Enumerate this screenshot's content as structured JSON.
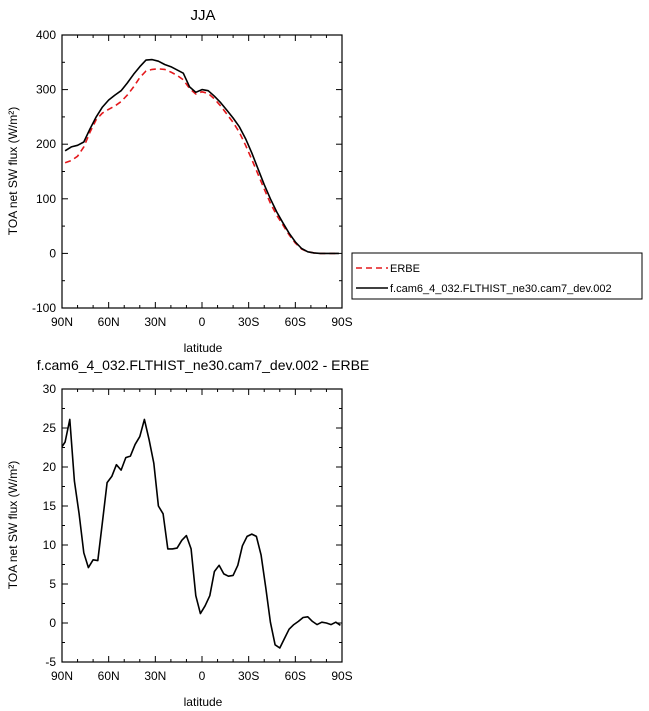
{
  "chart_data": [
    {
      "type": "line",
      "title": "JJA",
      "xlabel": "latitude",
      "ylabel": "TOA net SW flux (W/m²)",
      "xlim": [
        90,
        -90
      ],
      "ylim": [
        -100,
        400
      ],
      "xticks": [
        90,
        60,
        30,
        0,
        -30,
        -60,
        -90
      ],
      "xtick_labels": [
        "90N",
        "60N",
        "30N",
        "0",
        "30S",
        "60S",
        "90S"
      ],
      "yticks": [
        -100,
        0,
        100,
        200,
        300,
        400
      ],
      "ytick_labels": [
        "-100",
        "0",
        "100",
        "200",
        "300",
        "400"
      ],
      "legend": {
        "placement": "right-outside"
      },
      "series": [
        {
          "name": "ERBE",
          "color": "#e4181c",
          "dash": "dashed",
          "x": [
            88,
            84,
            80,
            76,
            72,
            68,
            64,
            60,
            56,
            52,
            48,
            44,
            40,
            36,
            32,
            28,
            24,
            20,
            16,
            12,
            8,
            4,
            0,
            -4,
            -8,
            -12,
            -16,
            -20,
            -24,
            -28,
            -32,
            -36,
            -40,
            -44,
            -48,
            -52,
            -56,
            -60,
            -64,
            -68,
            -72,
            -76,
            -80,
            -84,
            -88
          ],
          "values": [
            166,
            170,
            178,
            195,
            222,
            245,
            257,
            264,
            270,
            278,
            290,
            305,
            322,
            334,
            337,
            338,
            337,
            332,
            326,
            318,
            302,
            292,
            296,
            293,
            283,
            270,
            255,
            240,
            222,
            198,
            172,
            145,
            118,
            92,
            70,
            52,
            34,
            19,
            8,
            3,
            1,
            0,
            0,
            0,
            0
          ]
        },
        {
          "name": "f.cam6_4_032.FLTHIST_ne30.cam7_dev.002",
          "color": "#000000",
          "dash": "solid",
          "x": [
            88,
            84,
            80,
            76,
            72,
            68,
            64,
            60,
            56,
            52,
            48,
            44,
            40,
            36,
            32,
            28,
            24,
            20,
            16,
            12,
            8,
            4,
            0,
            -4,
            -8,
            -12,
            -16,
            -20,
            -24,
            -28,
            -32,
            -36,
            -40,
            -44,
            -48,
            -52,
            -56,
            -60,
            -64,
            -68,
            -72,
            -76,
            -80,
            -84,
            -88
          ],
          "values": [
            188,
            195,
            198,
            204,
            228,
            250,
            268,
            281,
            290,
            298,
            312,
            328,
            342,
            354,
            355,
            352,
            346,
            342,
            336,
            330,
            305,
            295,
            300,
            298,
            288,
            276,
            262,
            248,
            232,
            210,
            184,
            155,
            126,
            100,
            76,
            56,
            37,
            21,
            9,
            3,
            1,
            0,
            0,
            0,
            0
          ]
        }
      ]
    },
    {
      "type": "line",
      "title": "f.cam6_4_032.FLTHIST_ne30.cam7_dev.002 - ERBE",
      "xlabel": "latitude",
      "ylabel": "TOA net SW flux (W/m²)",
      "xlim": [
        90,
        -90
      ],
      "ylim": [
        -5,
        30
      ],
      "xticks": [
        90,
        60,
        30,
        0,
        -30,
        -60,
        -90
      ],
      "xtick_labels": [
        "90N",
        "60N",
        "30N",
        "0",
        "30S",
        "60S",
        "90S"
      ],
      "yticks": [
        -5,
        0,
        5,
        10,
        15,
        20,
        25,
        30
      ],
      "ytick_labels": [
        "-5",
        "0",
        "5",
        "10",
        "15",
        "20",
        "25",
        "30"
      ],
      "series": [
        {
          "color": "#000000",
          "dash": "solid",
          "x": [
            90,
            88,
            85,
            82,
            79,
            76,
            73,
            70,
            67,
            64,
            61,
            58,
            55,
            52,
            49,
            46,
            43,
            40,
            37,
            34,
            31,
            28,
            25,
            22,
            19,
            16,
            13,
            10,
            7,
            4,
            1,
            -2,
            -5,
            -8,
            -11,
            -14,
            -17,
            -20,
            -23,
            -26,
            -29,
            -32,
            -35,
            -38,
            -41,
            -44,
            -47,
            -50,
            -53,
            -56,
            -59,
            -62,
            -65,
            -68,
            -71,
            -74,
            -77,
            -80,
            -83,
            -86,
            -89
          ],
          "values": [
            22.6,
            23.2,
            26.1,
            18.2,
            14.0,
            9.0,
            7.1,
            8.1,
            8.0,
            12.9,
            18.0,
            18.8,
            20.3,
            19.6,
            21.2,
            21.4,
            22.9,
            23.9,
            26.1,
            23.5,
            20.5,
            15.0,
            14.0,
            9.5,
            9.5,
            9.6,
            10.6,
            11.2,
            9.5,
            3.5,
            1.2,
            2.2,
            3.5,
            6.6,
            7.4,
            6.3,
            6.0,
            6.1,
            7.4,
            9.9,
            11.1,
            11.4,
            11.1,
            8.7,
            4.5,
            0.1,
            -2.8,
            -3.2,
            -2.0,
            -0.8,
            -0.2,
            0.2,
            0.7,
            0.8,
            0.2,
            -0.2,
            0.1,
            0.0,
            -0.2,
            0.1,
            -0.3
          ]
        }
      ]
    }
  ]
}
